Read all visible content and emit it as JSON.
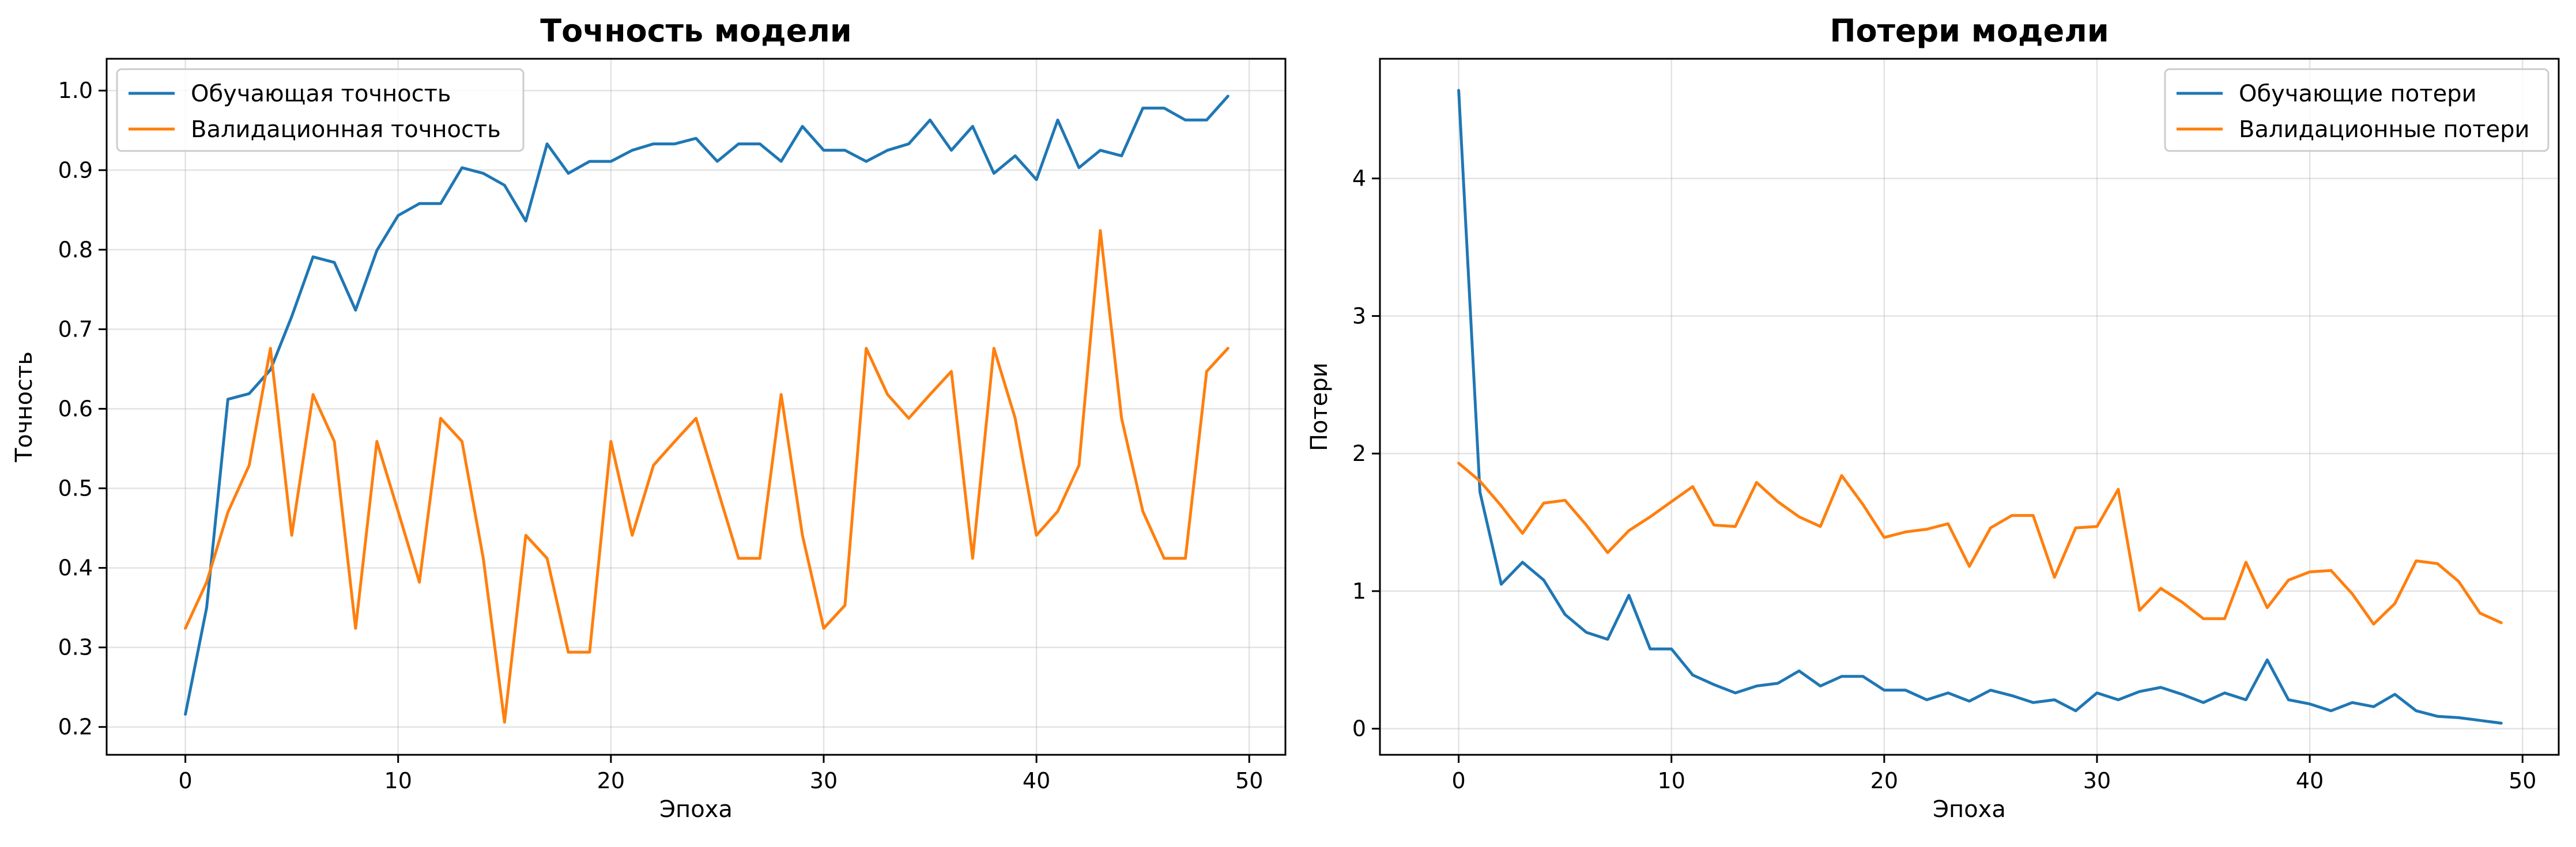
{
  "chart_data": [
    {
      "type": "line",
      "title": "Точность модели",
      "xlabel": "Эпоха",
      "ylabel": "Точность",
      "xlim": [
        -3.7,
        51.7
      ],
      "ylim": [
        0.165,
        1.04
      ],
      "xticks": [
        0,
        10,
        20,
        30,
        40,
        50
      ],
      "yticks": [
        0.2,
        0.3,
        0.4,
        0.5,
        0.6,
        0.7,
        0.8,
        0.9,
        1.0
      ],
      "yticks_labels": [
        "0.2",
        "0.3",
        "0.4",
        "0.5",
        "0.6",
        "0.7",
        "0.8",
        "0.9",
        "1.0"
      ],
      "grid": true,
      "legend_position": "upper-left",
      "x": [
        0,
        1,
        2,
        3,
        4,
        5,
        6,
        7,
        8,
        9,
        10,
        11,
        12,
        13,
        14,
        15,
        16,
        17,
        18,
        19,
        20,
        21,
        22,
        23,
        24,
        25,
        26,
        27,
        28,
        29,
        30,
        31,
        32,
        33,
        34,
        35,
        36,
        37,
        38,
        39,
        40,
        41,
        42,
        43,
        44,
        45,
        46,
        47,
        48,
        49
      ],
      "series": [
        {
          "name": "Обучающая точность",
          "color": "#1f77b4",
          "values": [
            0.216,
            0.35,
            0.612,
            0.619,
            0.649,
            0.716,
            0.791,
            0.784,
            0.724,
            0.799,
            0.843,
            0.858,
            0.858,
            0.903,
            0.896,
            0.881,
            0.836,
            0.933,
            0.896,
            0.911,
            0.911,
            0.925,
            0.933,
            0.933,
            0.94,
            0.911,
            0.933,
            0.933,
            0.911,
            0.955,
            0.925,
            0.925,
            0.911,
            0.925,
            0.933,
            0.963,
            0.925,
            0.955,
            0.896,
            0.918,
            0.888,
            0.963,
            0.903,
            0.925,
            0.918,
            0.978,
            0.978,
            0.963,
            0.963,
            0.993
          ]
        },
        {
          "name": "Валидационная точность",
          "color": "#ff7f0e",
          "values": [
            0.324,
            0.382,
            0.47,
            0.529,
            0.676,
            0.441,
            0.618,
            0.559,
            0.324,
            0.559,
            0.471,
            0.382,
            0.588,
            0.559,
            0.412,
            0.206,
            0.441,
            0.412,
            0.294,
            0.294,
            0.559,
            0.441,
            0.529,
            0.559,
            0.588,
            0.5,
            0.412,
            0.412,
            0.618,
            0.441,
            0.324,
            0.353,
            0.676,
            0.618,
            0.588,
            0.618,
            0.647,
            0.412,
            0.676,
            0.588,
            0.441,
            0.471,
            0.529,
            0.824,
            0.588,
            0.471,
            0.412,
            0.412,
            0.647,
            0.676
          ]
        }
      ]
    },
    {
      "type": "line",
      "title": "Потери модели",
      "xlabel": "Эпоха",
      "ylabel": "Потери",
      "xlim": [
        -3.7,
        51.7
      ],
      "ylim": [
        -0.19,
        4.87
      ],
      "xticks": [
        0,
        10,
        20,
        30,
        40,
        50
      ],
      "yticks": [
        0,
        1,
        2,
        3,
        4
      ],
      "yticks_labels": [
        "0",
        "1",
        "2",
        "3",
        "4"
      ],
      "grid": true,
      "legend_position": "upper-right",
      "x": [
        0,
        1,
        2,
        3,
        4,
        5,
        6,
        7,
        8,
        9,
        10,
        11,
        12,
        13,
        14,
        15,
        16,
        17,
        18,
        19,
        20,
        21,
        22,
        23,
        24,
        25,
        26,
        27,
        28,
        29,
        30,
        31,
        32,
        33,
        34,
        35,
        36,
        37,
        38,
        39,
        40,
        41,
        42,
        43,
        44,
        45,
        46,
        47,
        48,
        49
      ],
      "series": [
        {
          "name": "Обучающие потери",
          "color": "#1f77b4",
          "values": [
            4.64,
            1.72,
            1.05,
            1.21,
            1.08,
            0.83,
            0.7,
            0.65,
            0.97,
            0.58,
            0.58,
            0.39,
            0.32,
            0.26,
            0.31,
            0.33,
            0.42,
            0.31,
            0.38,
            0.38,
            0.28,
            0.28,
            0.21,
            0.26,
            0.2,
            0.28,
            0.24,
            0.19,
            0.21,
            0.13,
            0.26,
            0.21,
            0.27,
            0.3,
            0.25,
            0.19,
            0.26,
            0.21,
            0.5,
            0.21,
            0.18,
            0.13,
            0.19,
            0.16,
            0.25,
            0.13,
            0.09,
            0.08,
            0.06,
            0.04
          ]
        },
        {
          "name": "Валидационные потери",
          "color": "#ff7f0e",
          "values": [
            1.93,
            1.8,
            1.62,
            1.42,
            1.64,
            1.66,
            1.48,
            1.28,
            1.44,
            1.54,
            1.65,
            1.76,
            1.48,
            1.47,
            1.79,
            1.65,
            1.54,
            1.47,
            1.84,
            1.63,
            1.39,
            1.43,
            1.45,
            1.49,
            1.18,
            1.46,
            1.55,
            1.55,
            1.1,
            1.46,
            1.47,
            1.74,
            0.86,
            1.02,
            0.92,
            0.8,
            0.8,
            1.21,
            0.88,
            1.08,
            1.14,
            1.15,
            0.98,
            0.76,
            0.91,
            1.22,
            1.2,
            1.07,
            0.84,
            0.77
          ]
        }
      ]
    }
  ]
}
